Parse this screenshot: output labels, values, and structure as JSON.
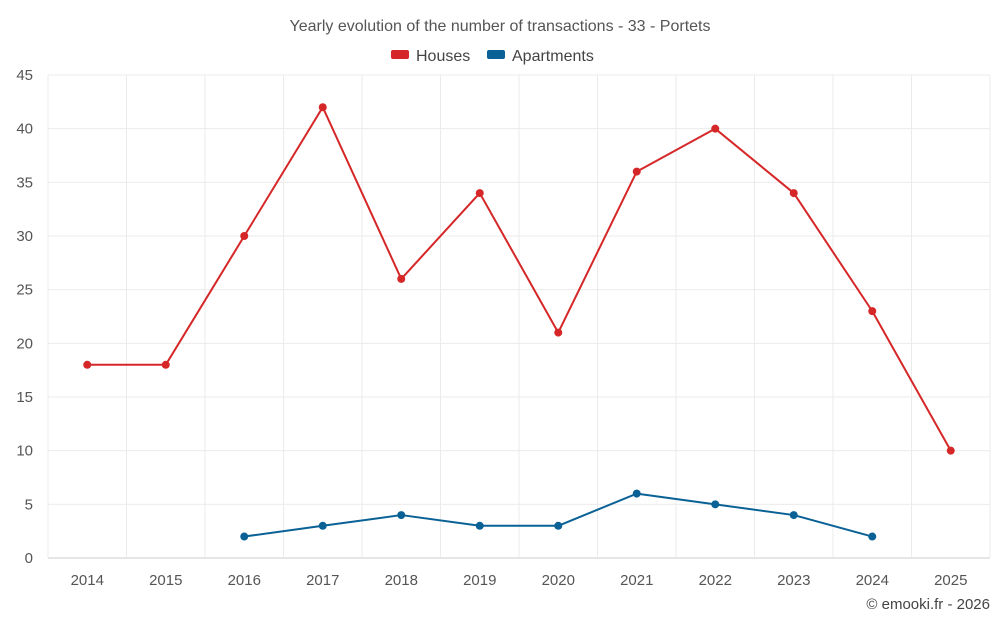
{
  "chart_data": {
    "type": "line",
    "title": "Yearly evolution of the number of transactions - 33 - Portets",
    "categories": [
      "2014",
      "2015",
      "2016",
      "2017",
      "2018",
      "2019",
      "2020",
      "2021",
      "2022",
      "2023",
      "2024",
      "2025"
    ],
    "series": [
      {
        "name": "Houses",
        "color": "#d62728",
        "values": [
          18,
          18,
          30,
          42,
          26,
          34,
          21,
          36,
          40,
          34,
          23,
          10
        ]
      },
      {
        "name": "Apartments",
        "color": "#0a6196",
        "values": [
          null,
          null,
          2,
          3,
          4,
          3,
          3,
          6,
          5,
          4,
          2,
          null
        ]
      }
    ],
    "ylim": [
      0,
      45
    ],
    "yticks": [
      0,
      5,
      10,
      15,
      20,
      25,
      30,
      35,
      40,
      45
    ],
    "grid": true,
    "legend_position": "top-center",
    "credit": "© emooki.fr - 2026"
  }
}
